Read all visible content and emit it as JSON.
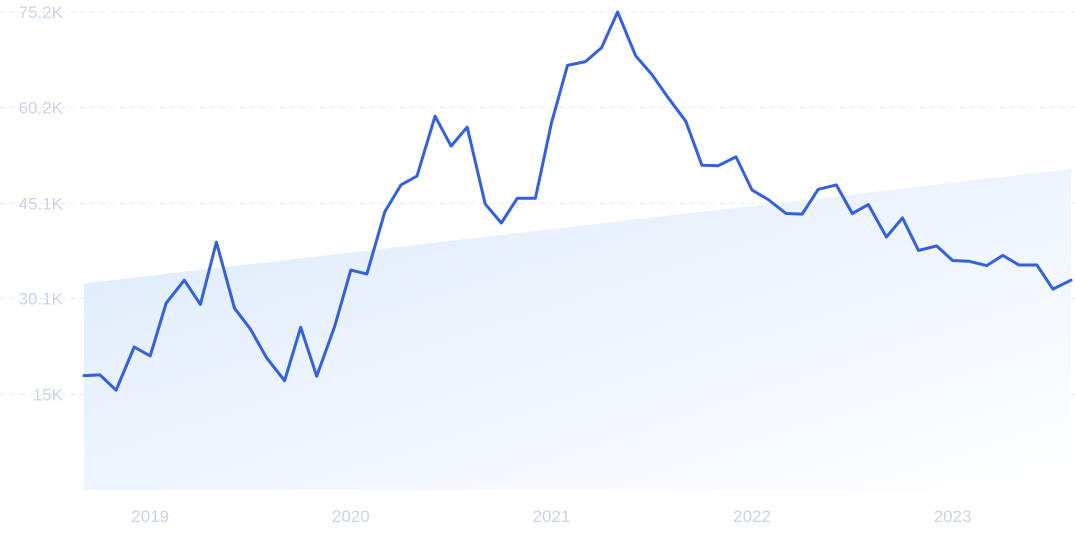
{
  "chart_data": {
    "type": "line",
    "title": "",
    "xlabel": "",
    "ylabel": "",
    "y_ticks": [
      "15K",
      "30.1K",
      "45.1K",
      "60.2K",
      "75.2K"
    ],
    "y_tick_values": [
      15000,
      30100,
      45100,
      60200,
      75200
    ],
    "ylim": [
      0,
      75200
    ],
    "x_ticks": [
      "2019",
      "2020",
      "2021",
      "2022",
      "2023"
    ],
    "x_tick_values": [
      2019.0,
      2020.0,
      2021.0,
      2022.0,
      2023.0
    ],
    "xlim": [
      2018.67,
      2023.59
    ],
    "grid": true,
    "trend": {
      "start": [
        2018.67,
        32500
      ],
      "end": [
        2023.59,
        50500
      ]
    },
    "colors": {
      "line": "#3461db",
      "trend_fill_top": "#dceafb",
      "trend_fill_end": "#ffffff",
      "grid": "#e6ebf3",
      "tick": "#c9d3e6"
    },
    "series": [
      {
        "x": [
          2018.67,
          2018.75,
          2018.83,
          2018.92,
          2019.0,
          2019.08,
          2019.17,
          2019.25,
          2019.33,
          2019.42,
          2019.5,
          2019.58,
          2019.67,
          2019.75,
          2019.83,
          2019.92,
          2020.0,
          2020.08,
          2020.17,
          2020.25,
          2020.33,
          2020.42,
          2020.5,
          2020.58,
          2020.67,
          2020.75,
          2020.83,
          2020.92,
          2021.0,
          2021.08,
          2021.17,
          2021.25,
          2021.33,
          2021.42,
          2021.5,
          2021.58,
          2021.67,
          2021.75,
          2021.83,
          2021.92,
          2022.0,
          2022.08,
          2022.17,
          2022.25,
          2022.33,
          2022.42,
          2022.5,
          2022.58,
          2022.67,
          2022.75,
          2022.83,
          2022.92,
          2023.0,
          2023.08,
          2023.17,
          2023.25,
          2023.33,
          2023.42,
          2023.5,
          2023.59
        ],
        "values": [
          18000,
          18100,
          15700,
          22500,
          21100,
          29400,
          33000,
          29200,
          39000,
          28600,
          25300,
          20800,
          17200,
          25600,
          17900,
          25800,
          34600,
          34000,
          43800,
          48000,
          49400,
          58800,
          54100,
          57100,
          45000,
          42000,
          45900,
          45900,
          57700,
          66800,
          67400,
          69600,
          75200,
          68300,
          65400,
          61800,
          58000,
          51100,
          51000,
          52400,
          47200,
          45700,
          43500,
          43400,
          47300,
          48000,
          43500,
          44900,
          39800,
          42800,
          37700,
          38400,
          36100,
          36000,
          35300,
          36900,
          35400,
          35400,
          31600,
          33000
        ]
      }
    ]
  }
}
